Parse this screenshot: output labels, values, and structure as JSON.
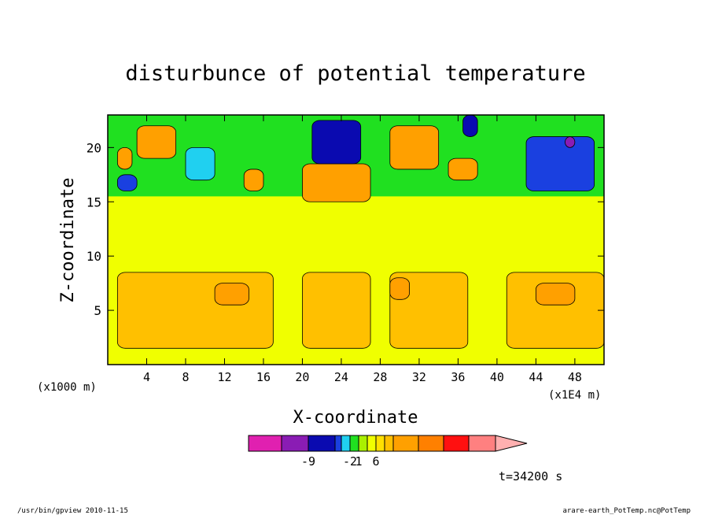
{
  "chart_data": {
    "type": "heatmap",
    "title": "disturbunce of potential temperature",
    "xlabel": "X-coordinate",
    "ylabel": "Z-coordinate",
    "x_unit_left": "(x1000 m)",
    "x_unit_right": "(x1E4 m)",
    "xlim": [
      0,
      51
    ],
    "ylim": [
      0,
      23
    ],
    "xticks": [
      4,
      8,
      12,
      16,
      20,
      24,
      28,
      32,
      36,
      40,
      44,
      48
    ],
    "yticks": [
      5,
      10,
      15,
      20
    ],
    "time_label": "t=34200 s",
    "colorbar": {
      "colors": [
        "#e020b0",
        "#8a1cb4",
        "#0a0ab0",
        "#1a40e0",
        "#20d0f0",
        "#20e020",
        "#aaf000",
        "#f0ff00",
        "#ffe000",
        "#ffc000",
        "#ffa000",
        "#ff8000",
        "#ff1010",
        "#ff8080"
      ],
      "extend_color": "#ffb0b0",
      "tick_labels": [
        {
          "boundary": 2,
          "label": "-9"
        },
        {
          "boundary": 5,
          "label": "-2"
        },
        {
          "boundary": 6,
          "label": "1"
        },
        {
          "boundary": 8,
          "label": "6"
        }
      ]
    },
    "field_regions": [
      {
        "x": [
          0,
          51
        ],
        "z": [
          0,
          23
        ],
        "level": 7
      },
      {
        "x": [
          0,
          51
        ],
        "z": [
          15.5,
          23
        ],
        "level": 5
      },
      {
        "x": [
          1,
          17
        ],
        "z": [
          1.5,
          8.5
        ],
        "level": 9
      },
      {
        "x": [
          20,
          27
        ],
        "z": [
          1.5,
          8.5
        ],
        "level": 9
      },
      {
        "x": [
          29,
          37
        ],
        "z": [
          1.5,
          8.5
        ],
        "level": 9
      },
      {
        "x": [
          41,
          51
        ],
        "z": [
          1.5,
          8.5
        ],
        "level": 9
      },
      {
        "x": [
          44,
          48
        ],
        "z": [
          5.5,
          7.5
        ],
        "level": 10
      },
      {
        "x": [
          11,
          14.5
        ],
        "z": [
          5.5,
          7.5
        ],
        "level": 10
      },
      {
        "x": [
          29,
          31
        ],
        "z": [
          6,
          8
        ],
        "level": 10
      },
      {
        "x": [
          20,
          27
        ],
        "z": [
          15,
          18.5
        ],
        "level": 10
      },
      {
        "x": [
          29,
          34
        ],
        "z": [
          18,
          22
        ],
        "level": 10
      },
      {
        "x": [
          3,
          7
        ],
        "z": [
          19,
          22
        ],
        "level": 10
      },
      {
        "x": [
          14,
          16
        ],
        "z": [
          16,
          18
        ],
        "level": 10
      },
      {
        "x": [
          1,
          2.5
        ],
        "z": [
          18,
          20
        ],
        "level": 10
      },
      {
        "x": [
          35,
          38
        ],
        "z": [
          17,
          19
        ],
        "level": 10
      },
      {
        "x": [
          21,
          26
        ],
        "z": [
          18.5,
          22.5
        ],
        "level": 2
      },
      {
        "x": [
          43,
          50
        ],
        "z": [
          16,
          21
        ],
        "level": 3
      },
      {
        "x": [
          8,
          11
        ],
        "z": [
          17,
          20
        ],
        "level": 4
      },
      {
        "x": [
          1,
          3
        ],
        "z": [
          16,
          17.5
        ],
        "level": 3
      },
      {
        "x": [
          36.5,
          38
        ],
        "z": [
          21,
          23
        ],
        "level": 2
      },
      {
        "x": [
          47,
          48
        ],
        "z": [
          20,
          21
        ],
        "level": 1
      }
    ],
    "annotations": {
      "bottom_left": "/usr/bin/gpview   2010-11-15",
      "bottom_right": "arare-earth_PotTemp.nc@PotTemp"
    }
  }
}
